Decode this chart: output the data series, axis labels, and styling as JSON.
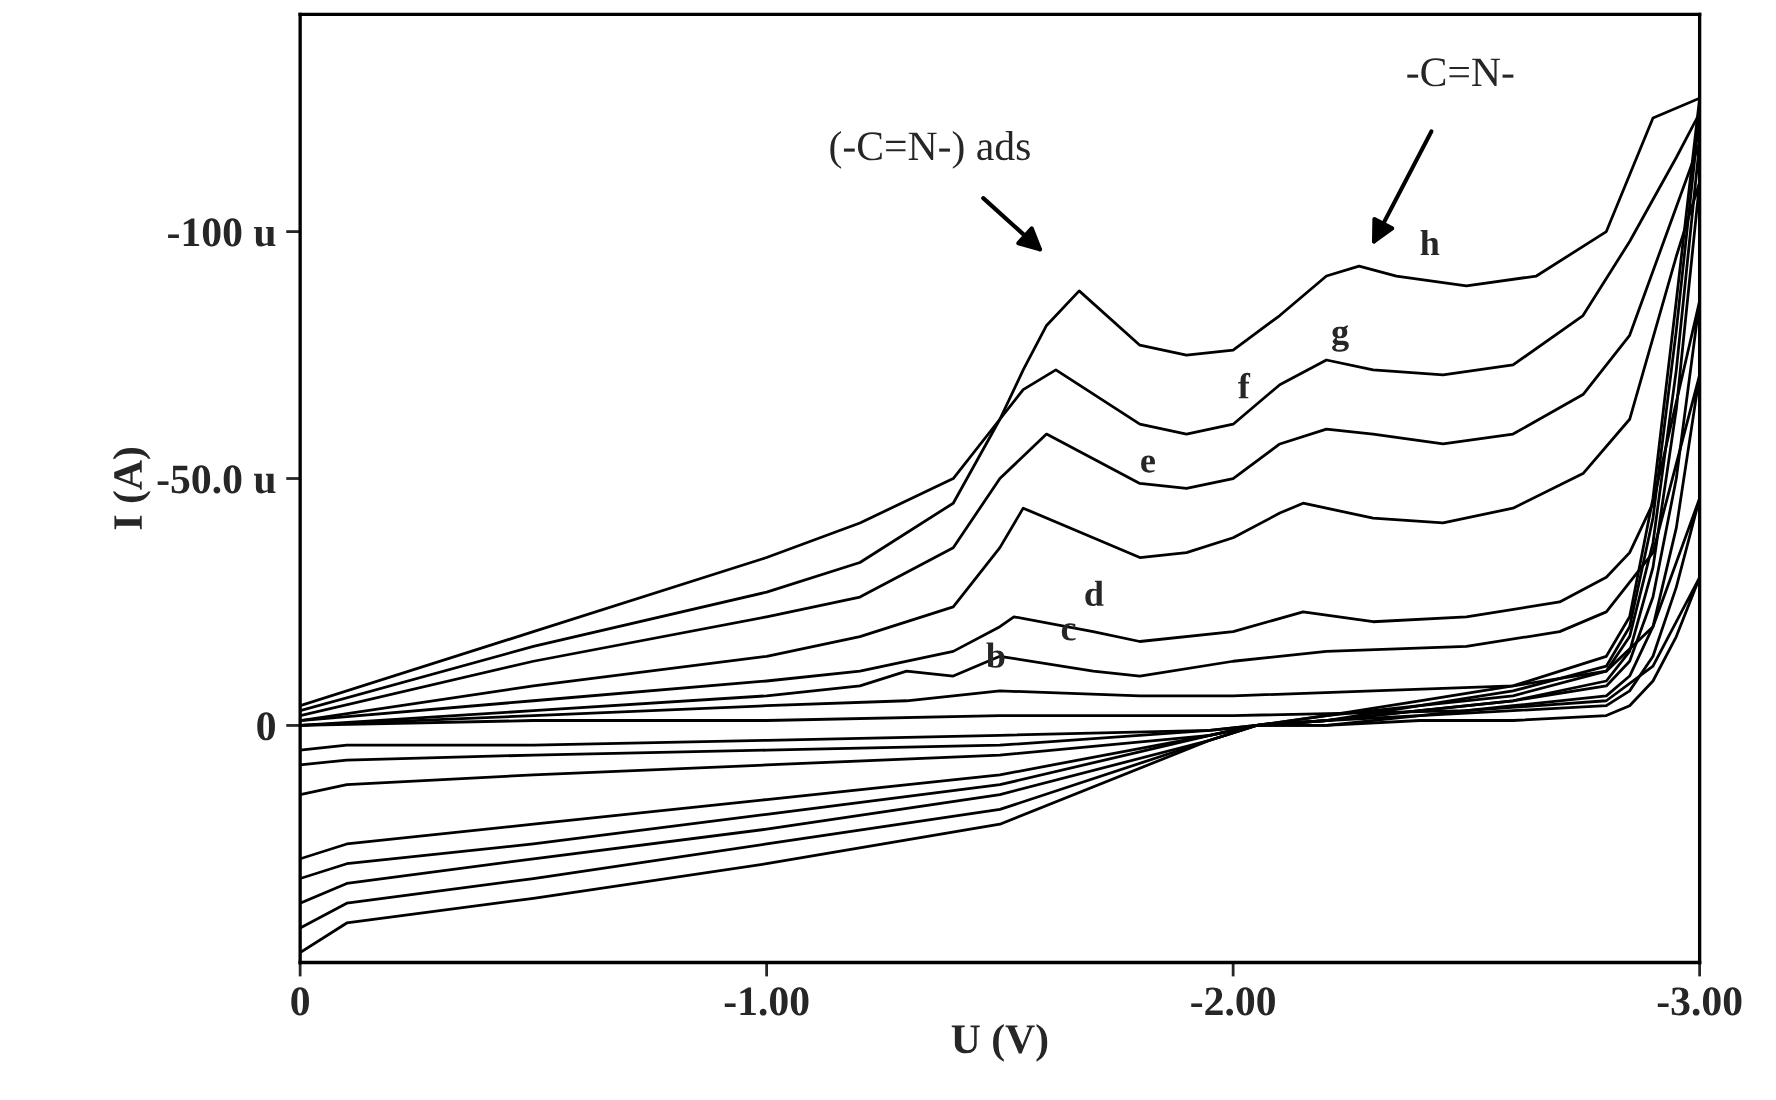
{
  "chart_data": {
    "type": "line",
    "xlabel": "U (V)",
    "ylabel": "I (A)",
    "xlim": [
      0,
      -3.0
    ],
    "ylim": [
      48,
      -144
    ],
    "xticks": [
      0,
      {
        "value": -1.0,
        "label": "-1.00"
      },
      {
        "value": -2.0,
        "label": "-2.00"
      },
      {
        "value": -3.0,
        "label": "-3.00"
      }
    ],
    "yticks": [
      {
        "value": -100,
        "label": "-100 u"
      },
      {
        "value": -50,
        "label": "-50.0 u"
      },
      0
    ],
    "grid": false,
    "marker": "none",
    "line_style": "solid",
    "series": [
      {
        "color": "#000000",
        "x": [
          0,
          -0.5,
          -1.0,
          -1.5,
          -2.0,
          -2.5,
          -2.8,
          -2.9,
          -3.0,
          -2.95,
          -2.9,
          -2.85,
          -2.8,
          -2.6,
          -2.4,
          -2.2,
          -2.05,
          -1.95,
          -1.5,
          -1.0,
          -0.5,
          -0.1,
          0
        ],
        "values": [
          0,
          -1,
          -1,
          -2,
          -2,
          -3,
          -5,
          -12,
          -30,
          -18,
          -9,
          -4,
          -2,
          -1,
          -1,
          0,
          0,
          1,
          2,
          3,
          4,
          4,
          5
        ]
      },
      {
        "color": "#000000",
        "x": [
          0,
          -0.5,
          -1.0,
          -1.3,
          -1.5,
          -1.8,
          -2.0,
          -2.3,
          -2.6,
          -2.8,
          -2.9,
          -3.0,
          -2.95,
          -2.9,
          -2.85,
          -2.8,
          -2.6,
          -2.4,
          -2.2,
          -2.05,
          -1.95,
          -1.5,
          -1.0,
          -0.5,
          -0.1,
          0
        ],
        "values": [
          0,
          -2,
          -4,
          -5,
          -7,
          -6,
          -6,
          -7,
          -8,
          -11,
          -20,
          -46,
          -28,
          -14,
          -7,
          -4,
          -3,
          -2,
          0,
          0,
          1,
          4,
          5,
          6,
          7,
          8
        ]
      },
      {
        "color": "#000000",
        "x": [
          0,
          -0.5,
          -1.0,
          -1.2,
          -1.3,
          -1.4,
          -1.5,
          -1.7,
          -1.8,
          -2.0,
          -2.2,
          -2.5,
          -2.7,
          -2.8,
          -2.9,
          -3.0,
          -2.95,
          -2.9,
          -2.85,
          -2.8,
          -2.6,
          -2.4,
          -2.2,
          -2.05,
          -1.95,
          -1.5,
          -1.0,
          -0.5,
          -0.1,
          0
        ],
        "values": [
          0,
          -3,
          -6,
          -8,
          -11,
          -10,
          -14,
          -11,
          -10,
          -13,
          -15,
          -16,
          -19,
          -23,
          -35,
          -71,
          -40,
          -20,
          -10,
          -6,
          -4,
          -2,
          -1,
          0,
          2,
          6,
          8,
          10,
          12,
          14
        ]
      },
      {
        "color": "#000000",
        "x": [
          0,
          -0.5,
          -1.0,
          -1.2,
          -1.4,
          -1.5,
          -1.53,
          -1.7,
          -1.8,
          -2.0,
          -2.15,
          -2.3,
          -2.5,
          -2.7,
          -2.8,
          -2.85,
          -2.9,
          -3.0,
          -2.95,
          -2.9,
          -2.85,
          -2.8,
          -2.6,
          -2.4,
          -2.2,
          -2.05,
          -1.95,
          -1.5,
          -1.0,
          -0.5,
          -0.1,
          0
        ],
        "values": [
          -1,
          -5,
          -9,
          -11,
          -15,
          -20,
          -22,
          -19,
          -17,
          -19,
          -23,
          -21,
          -22,
          -25,
          -30,
          -35,
          -45,
          -86,
          -50,
          -26,
          -13,
          -8,
          -5,
          -3,
          -1,
          0,
          2,
          10,
          15,
          20,
          24,
          27
        ]
      },
      {
        "color": "#000000",
        "x": [
          0,
          -0.5,
          -1.0,
          -1.2,
          -1.4,
          -1.5,
          -1.55,
          -1.7,
          -1.8,
          -1.9,
          -2.0,
          -2.1,
          -2.15,
          -2.3,
          -2.45,
          -2.6,
          -2.75,
          -2.85,
          -2.95,
          -3.0,
          -2.95,
          -2.9,
          -2.85,
          -2.8,
          -2.6,
          -2.4,
          -2.2,
          -2.05,
          -1.95,
          -1.5,
          -1.0,
          -0.5,
          -0.1,
          0
        ],
        "values": [
          -1,
          -8,
          -14,
          -18,
          -24,
          -36,
          -44,
          -38,
          -34,
          -35,
          -38,
          -43,
          -45,
          -42,
          -41,
          -44,
          -51,
          -62,
          -95,
          -110,
          -64,
          -32,
          -15,
          -9,
          -5,
          -3,
          -1,
          0,
          2,
          12,
          18,
          24,
          28,
          31
        ]
      },
      {
        "color": "#000000",
        "x": [
          0,
          -0.5,
          -1.0,
          -1.2,
          -1.4,
          -1.5,
          -1.6,
          -1.8,
          -1.9,
          -2.0,
          -2.1,
          -2.2,
          -2.3,
          -2.45,
          -2.6,
          -2.75,
          -2.85,
          -2.95,
          -3.0,
          -2.95,
          -2.9,
          -2.85,
          -2.8,
          -2.6,
          -2.4,
          -2.2,
          -2.05,
          -1.95,
          -1.5,
          -1.0,
          -0.5,
          -0.1,
          0
        ],
        "values": [
          -2,
          -13,
          -22,
          -26,
          -36,
          -50,
          -59,
          -49,
          -48,
          -50,
          -57,
          -60,
          -59,
          -57,
          -59,
          -67,
          -79,
          -105,
          -118,
          -72,
          -37,
          -18,
          -11,
          -6,
          -4,
          -1,
          0,
          3,
          14,
          21,
          27,
          32,
          36
        ]
      },
      {
        "color": "#000000",
        "x": [
          0,
          -0.5,
          -1.0,
          -1.2,
          -1.4,
          -1.5,
          -1.55,
          -1.62,
          -1.8,
          -1.9,
          -2.0,
          -2.1,
          -2.2,
          -2.3,
          -2.45,
          -2.6,
          -2.75,
          -2.85,
          -2.95,
          -3.0,
          -2.95,
          -2.9,
          -2.85,
          -2.8,
          -2.6,
          -2.4,
          -2.2,
          -2.05,
          -1.95,
          -1.5,
          -1.0,
          -0.5,
          -0.1,
          0
        ],
        "values": [
          -3,
          -16,
          -27,
          -33,
          -45,
          -62,
          -68,
          -72,
          -61,
          -59,
          -61,
          -69,
          -74,
          -72,
          -71,
          -73,
          -83,
          -98,
          -115,
          -124,
          -80,
          -42,
          -20,
          -12,
          -7,
          -4,
          -2,
          0,
          3,
          17,
          24,
          31,
          36,
          41
        ]
      },
      {
        "color": "#000000",
        "x": [
          0,
          -0.5,
          -1.0,
          -1.2,
          -1.4,
          -1.5,
          -1.55,
          -1.6,
          -1.67,
          -1.8,
          -1.9,
          -2.0,
          -2.1,
          -2.2,
          -2.27,
          -2.35,
          -2.5,
          -2.65,
          -2.8,
          -2.9,
          -3.0,
          -2.95,
          -2.9,
          -2.85,
          -2.8,
          -2.6,
          -2.4,
          -2.2,
          -2.05,
          -1.95,
          -1.5,
          -1.0,
          -0.5,
          -0.1,
          0
        ],
        "values": [
          -4,
          -19,
          -34,
          -41,
          -50,
          -62,
          -72,
          -81,
          -88,
          -77,
          -75,
          -76,
          -83,
          -91,
          -93,
          -91,
          -89,
          -91,
          -100,
          -123,
          -127,
          -86,
          -46,
          -22,
          -14,
          -8,
          -5,
          -2,
          0,
          3,
          20,
          28,
          35,
          40,
          46
        ]
      }
    ],
    "annotations": [
      "(-C=N-) ads",
      "-C=N-",
      {
        "text": "b",
        "x": -1.47,
        "y": -8.5
      },
      {
        "text": "c",
        "x": -1.63,
        "y": -14
      },
      {
        "text": "d",
        "x": -1.68,
        "y": -21
      },
      {
        "text": "e",
        "x": -1.8,
        "y": -48
      },
      {
        "text": "f",
        "x": -2.01,
        "y": -63
      },
      {
        "text": "g",
        "x": -2.21,
        "y": -74
      },
      {
        "text": "h",
        "x": -2.4,
        "y": -92
      }
    ]
  }
}
